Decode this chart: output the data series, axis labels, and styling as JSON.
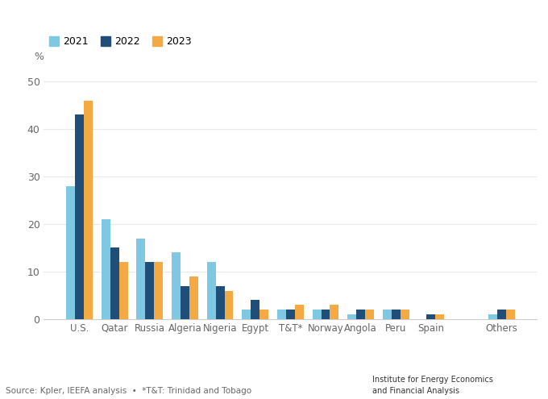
{
  "categories": [
    "U.S.",
    "Qatar",
    "Russia",
    "Algeria",
    "Nigeria",
    "Egypt",
    "T&T*",
    "Norway",
    "Angola",
    "Peru",
    "Spain",
    "",
    "Others"
  ],
  "values_2021": [
    28,
    21,
    17,
    14,
    12,
    2,
    2,
    2,
    1,
    2,
    0,
    0,
    1
  ],
  "values_2022": [
    43,
    15,
    12,
    7,
    7,
    4,
    2,
    2,
    2,
    2,
    1,
    0,
    2
  ],
  "values_2023": [
    46,
    12,
    12,
    9,
    6,
    2,
    3,
    3,
    2,
    2,
    1,
    0,
    2
  ],
  "color_2021": "#7EC8E3",
  "color_2022": "#1F4E79",
  "color_2023": "#F4A942",
  "ylim": [
    0,
    52
  ],
  "yticks": [
    0,
    10,
    20,
    30,
    40,
    50
  ],
  "ylabel": "%",
  "legend_labels": [
    "2021",
    "2022",
    "2023"
  ],
  "source_text": "Source: Kpler, IEEFA analysis  •  *T&T: Trinidad and Tobago",
  "ieefa_text": "Institute for Energy Economics\nand Financial Analysis",
  "background_color": "#ffffff",
  "bar_width": 0.25
}
